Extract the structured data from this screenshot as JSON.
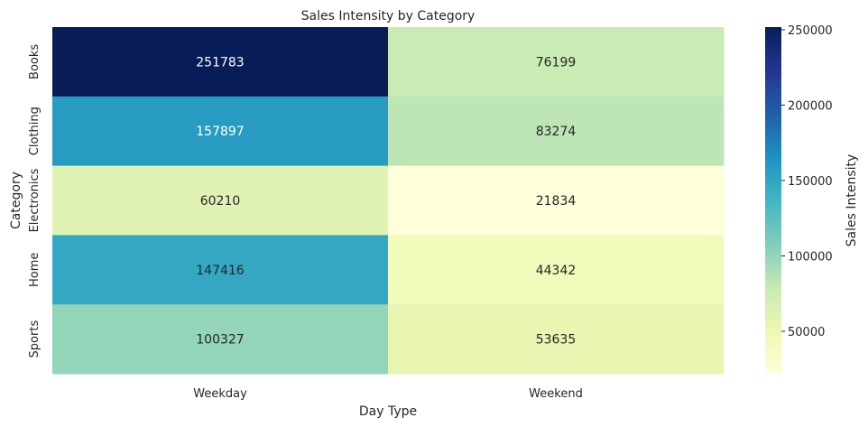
{
  "chart_data": {
    "type": "heatmap",
    "title": "Sales Intensity by Category",
    "xlabel": "Day Type",
    "ylabel": "Category",
    "x_categories": [
      "Weekday",
      "Weekend"
    ],
    "y_categories": [
      "Books",
      "Clothing",
      "Electronics",
      "Home",
      "Sports"
    ],
    "values": [
      [
        251783,
        76199
      ],
      [
        157897,
        83274
      ],
      [
        60210,
        21834
      ],
      [
        147416,
        44342
      ],
      [
        100327,
        53635
      ]
    ],
    "colorbar": {
      "label": "Sales Intensity",
      "ticks": [
        50000,
        100000,
        150000,
        200000,
        250000
      ],
      "range": [
        21834,
        251783
      ]
    },
    "colormap": "YlGnBu",
    "grid": false
  }
}
